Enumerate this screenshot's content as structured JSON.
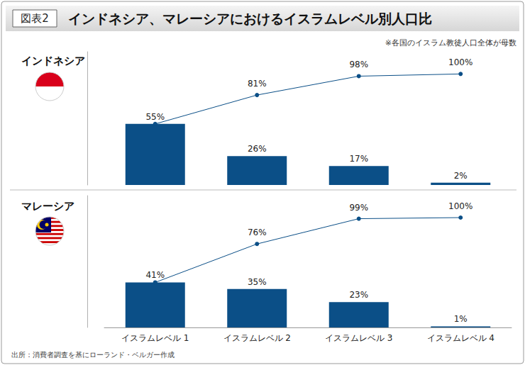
{
  "figure_label": "図表2",
  "title": "インドネシア、マレーシアにおけるイスラムレベル別人口比",
  "note": "※各国のイスラム教徒人口全体が母数",
  "source": "出所：消費者調査を基にローランド・ベルガー作成",
  "chart_data": [
    {
      "type": "bar",
      "title": "インドネシア",
      "categories": [
        "イスラムレベル 1",
        "イスラムレベル 2",
        "イスラムレベル 3",
        "イスラムレベル 4"
      ],
      "series": [
        {
          "type": "bar",
          "color": "#0b4f87",
          "values": [
            55,
            26,
            17,
            2
          ],
          "value_labels": [
            "55%",
            "26%",
            "17%",
            "2%"
          ]
        },
        {
          "type": "line",
          "color": "#0b4f87",
          "marker": "circle",
          "values": [
            55,
            81,
            98,
            100
          ],
          "value_labels": [
            null,
            "81%",
            "98%",
            "100%"
          ]
        }
      ],
      "ylim": [
        0,
        120
      ],
      "grid": false,
      "data_labels": true,
      "tick_labels": false
    },
    {
      "type": "bar",
      "title": "マレーシア",
      "categories": [
        "イスラムレベル 1",
        "イスラムレベル 2",
        "イスラムレベル 3",
        "イスラムレベル 4"
      ],
      "series": [
        {
          "type": "bar",
          "color": "#0b4f87",
          "values": [
            41,
            35,
            23,
            1
          ],
          "value_labels": [
            "41%",
            "35%",
            "23%",
            "1%"
          ]
        },
        {
          "type": "line",
          "color": "#0b4f87",
          "marker": "circle",
          "values": [
            41,
            76,
            99,
            100
          ],
          "value_labels": [
            null,
            "76%",
            "99%",
            "100%"
          ]
        }
      ],
      "ylim": [
        0,
        120
      ],
      "grid": false,
      "data_labels": true,
      "tick_labels": "x"
    }
  ]
}
